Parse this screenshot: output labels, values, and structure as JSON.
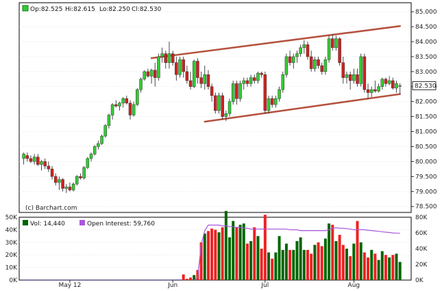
{
  "chart_data": [
    {
      "type": "candlestick",
      "title": "",
      "legend": {
        "open": "Op:82.525",
        "high": "Hi:82.615",
        "low": "Lo:82.250",
        "close": "Cl:82.530"
      },
      "credit": "(c) Barchart.com",
      "last_price_label": "82.530",
      "ylim": [
        78.3,
        85.3
      ],
      "yticks": [
        "85.000",
        "84.500",
        "84.000",
        "83.500",
        "83.000",
        "82.500",
        "82.000",
        "81.500",
        "81.000",
        "80.500",
        "80.000",
        "79.500",
        "79.000",
        "78.500"
      ],
      "ytick_values": [
        85.0,
        84.5,
        84.0,
        83.5,
        83.0,
        82.5,
        82.0,
        81.5,
        81.0,
        80.5,
        80.0,
        79.5,
        79.0,
        78.5
      ],
      "xticks": [
        "May 12",
        "Jun",
        "Jul",
        "Aug"
      ],
      "xtick_bar_index": [
        13,
        42,
        68,
        93
      ],
      "bar_count": 107,
      "trendlines": [
        {
          "from": [
            36,
            83.45
          ],
          "to": [
            106,
            84.52
          ]
        },
        {
          "from": [
            51,
            81.33
          ],
          "to": [
            106,
            82.25
          ]
        }
      ],
      "colors": {
        "up": "#33cc33",
        "down": "#cc2222",
        "trendline": "#b5523f"
      },
      "candles": [
        {
          "o": 80.1,
          "h": 80.3,
          "l": 79.9,
          "c": 80.25
        },
        {
          "o": 80.2,
          "h": 80.3,
          "l": 80.0,
          "c": 80.1
        },
        {
          "o": 80.1,
          "h": 80.2,
          "l": 79.95,
          "c": 80.0
        },
        {
          "o": 80.0,
          "h": 80.25,
          "l": 79.9,
          "c": 80.15
        },
        {
          "o": 80.15,
          "h": 80.25,
          "l": 79.85,
          "c": 79.9
        },
        {
          "o": 79.9,
          "h": 80.05,
          "l": 79.7,
          "c": 80.0
        },
        {
          "o": 80.0,
          "h": 80.1,
          "l": 79.75,
          "c": 79.85
        },
        {
          "o": 79.85,
          "h": 80.0,
          "l": 79.65,
          "c": 79.75
        },
        {
          "o": 79.75,
          "h": 79.85,
          "l": 79.4,
          "c": 79.5
        },
        {
          "o": 79.5,
          "h": 79.6,
          "l": 79.2,
          "c": 79.3
        },
        {
          "o": 79.3,
          "h": 79.5,
          "l": 79.05,
          "c": 79.4
        },
        {
          "o": 79.4,
          "h": 79.45,
          "l": 79.0,
          "c": 79.1
        },
        {
          "o": 79.1,
          "h": 79.25,
          "l": 78.95,
          "c": 79.15
        },
        {
          "o": 79.15,
          "h": 79.3,
          "l": 79.0,
          "c": 79.05
        },
        {
          "o": 79.05,
          "h": 79.3,
          "l": 79.0,
          "c": 79.25
        },
        {
          "o": 79.25,
          "h": 79.55,
          "l": 79.2,
          "c": 79.5
        },
        {
          "o": 79.5,
          "h": 79.6,
          "l": 79.4,
          "c": 79.45
        },
        {
          "o": 79.45,
          "h": 79.85,
          "l": 79.4,
          "c": 79.8
        },
        {
          "o": 79.8,
          "h": 80.15,
          "l": 79.75,
          "c": 80.1
        },
        {
          "o": 80.1,
          "h": 80.3,
          "l": 80.0,
          "c": 80.25
        },
        {
          "o": 80.25,
          "h": 80.55,
          "l": 80.2,
          "c": 80.5
        },
        {
          "o": 80.5,
          "h": 80.7,
          "l": 80.4,
          "c": 80.6
        },
        {
          "o": 80.6,
          "h": 80.9,
          "l": 80.55,
          "c": 80.85
        },
        {
          "o": 80.85,
          "h": 81.25,
          "l": 80.8,
          "c": 81.2
        },
        {
          "o": 81.2,
          "h": 81.6,
          "l": 81.1,
          "c": 81.55
        },
        {
          "o": 81.55,
          "h": 81.95,
          "l": 81.4,
          "c": 81.9
        },
        {
          "o": 81.9,
          "h": 82.05,
          "l": 81.8,
          "c": 81.85
        },
        {
          "o": 81.85,
          "h": 82.0,
          "l": 81.7,
          "c": 81.95
        },
        {
          "o": 81.95,
          "h": 82.15,
          "l": 81.8,
          "c": 82.1
        },
        {
          "o": 82.1,
          "h": 82.2,
          "l": 81.9,
          "c": 81.95
        },
        {
          "o": 81.95,
          "h": 82.05,
          "l": 81.4,
          "c": 81.55
        },
        {
          "o": 81.55,
          "h": 82.0,
          "l": 81.5,
          "c": 81.9
        },
        {
          "o": 81.9,
          "h": 82.45,
          "l": 81.85,
          "c": 82.4
        },
        {
          "o": 82.4,
          "h": 82.8,
          "l": 82.3,
          "c": 82.75
        },
        {
          "o": 82.75,
          "h": 83.05,
          "l": 82.7,
          "c": 83.0
        },
        {
          "o": 83.0,
          "h": 83.1,
          "l": 82.8,
          "c": 82.85
        },
        {
          "o": 82.85,
          "h": 83.1,
          "l": 82.6,
          "c": 83.05
        },
        {
          "o": 83.05,
          "h": 83.3,
          "l": 82.5,
          "c": 82.8
        },
        {
          "o": 82.8,
          "h": 83.6,
          "l": 82.7,
          "c": 83.5
        },
        {
          "o": 83.5,
          "h": 83.8,
          "l": 83.3,
          "c": 83.6
        },
        {
          "o": 83.6,
          "h": 83.7,
          "l": 83.1,
          "c": 83.3
        },
        {
          "o": 83.3,
          "h": 84.0,
          "l": 83.1,
          "c": 83.6
        },
        {
          "o": 83.6,
          "h": 83.7,
          "l": 83.2,
          "c": 83.3
        },
        {
          "o": 83.3,
          "h": 83.5,
          "l": 82.7,
          "c": 82.9
        },
        {
          "o": 82.9,
          "h": 83.5,
          "l": 82.8,
          "c": 83.4
        },
        {
          "o": 83.4,
          "h": 83.5,
          "l": 82.8,
          "c": 83.0
        },
        {
          "o": 83.0,
          "h": 83.2,
          "l": 82.6,
          "c": 82.7
        },
        {
          "o": 82.7,
          "h": 83.0,
          "l": 82.4,
          "c": 82.5
        },
        {
          "o": 82.5,
          "h": 83.4,
          "l": 82.45,
          "c": 83.35
        },
        {
          "o": 83.35,
          "h": 83.45,
          "l": 82.6,
          "c": 82.8
        },
        {
          "o": 82.8,
          "h": 83.0,
          "l": 82.45,
          "c": 82.6
        },
        {
          "o": 82.6,
          "h": 83.2,
          "l": 82.4,
          "c": 82.9
        },
        {
          "o": 82.9,
          "h": 83.05,
          "l": 82.4,
          "c": 82.5
        },
        {
          "o": 82.5,
          "h": 82.6,
          "l": 82.0,
          "c": 82.2
        },
        {
          "o": 82.2,
          "h": 82.3,
          "l": 81.6,
          "c": 81.7
        },
        {
          "o": 81.7,
          "h": 82.3,
          "l": 81.6,
          "c": 82.2
        },
        {
          "o": 82.2,
          "h": 82.3,
          "l": 81.4,
          "c": 81.5
        },
        {
          "o": 81.5,
          "h": 81.7,
          "l": 81.35,
          "c": 81.6
        },
        {
          "o": 81.6,
          "h": 82.1,
          "l": 81.5,
          "c": 82.0
        },
        {
          "o": 82.0,
          "h": 82.7,
          "l": 81.9,
          "c": 82.6
        },
        {
          "o": 82.6,
          "h": 82.7,
          "l": 81.9,
          "c": 82.1
        },
        {
          "o": 82.1,
          "h": 82.7,
          "l": 82.0,
          "c": 82.6
        },
        {
          "o": 82.6,
          "h": 82.8,
          "l": 82.4,
          "c": 82.7
        },
        {
          "o": 82.7,
          "h": 82.8,
          "l": 82.5,
          "c": 82.6
        },
        {
          "o": 82.6,
          "h": 82.9,
          "l": 82.5,
          "c": 82.8
        },
        {
          "o": 82.8,
          "h": 82.9,
          "l": 82.6,
          "c": 82.7
        },
        {
          "o": 82.7,
          "h": 83.0,
          "l": 82.6,
          "c": 82.95
        },
        {
          "o": 82.95,
          "h": 83.0,
          "l": 82.8,
          "c": 82.9
        },
        {
          "o": 82.9,
          "h": 83.0,
          "l": 81.6,
          "c": 81.7
        },
        {
          "o": 81.7,
          "h": 82.2,
          "l": 81.6,
          "c": 82.1
        },
        {
          "o": 82.1,
          "h": 82.2,
          "l": 81.8,
          "c": 81.9
        },
        {
          "o": 81.9,
          "h": 82.2,
          "l": 81.8,
          "c": 82.1
        },
        {
          "o": 82.1,
          "h": 82.5,
          "l": 82.0,
          "c": 82.4
        },
        {
          "o": 82.4,
          "h": 83.0,
          "l": 82.3,
          "c": 82.9
        },
        {
          "o": 82.9,
          "h": 83.6,
          "l": 82.8,
          "c": 83.5
        },
        {
          "o": 83.5,
          "h": 83.7,
          "l": 83.2,
          "c": 83.3
        },
        {
          "o": 83.3,
          "h": 83.6,
          "l": 83.1,
          "c": 83.5
        },
        {
          "o": 83.5,
          "h": 83.7,
          "l": 83.3,
          "c": 83.6
        },
        {
          "o": 83.6,
          "h": 83.9,
          "l": 83.5,
          "c": 83.8
        },
        {
          "o": 83.8,
          "h": 84.05,
          "l": 83.6,
          "c": 83.9
        },
        {
          "o": 83.9,
          "h": 84.0,
          "l": 83.4,
          "c": 83.5
        },
        {
          "o": 83.5,
          "h": 83.7,
          "l": 83.0,
          "c": 83.1
        },
        {
          "o": 83.1,
          "h": 83.5,
          "l": 83.0,
          "c": 83.4
        },
        {
          "o": 83.4,
          "h": 83.5,
          "l": 83.1,
          "c": 83.2
        },
        {
          "o": 83.2,
          "h": 83.3,
          "l": 82.9,
          "c": 83.0
        },
        {
          "o": 83.0,
          "h": 83.5,
          "l": 82.9,
          "c": 83.4
        },
        {
          "o": 83.4,
          "h": 84.2,
          "l": 83.3,
          "c": 84.1
        },
        {
          "o": 84.1,
          "h": 84.25,
          "l": 83.7,
          "c": 83.8
        },
        {
          "o": 83.8,
          "h": 84.2,
          "l": 83.7,
          "c": 84.1
        },
        {
          "o": 84.1,
          "h": 84.15,
          "l": 83.2,
          "c": 83.3
        },
        {
          "o": 83.3,
          "h": 83.5,
          "l": 82.6,
          "c": 82.8
        },
        {
          "o": 82.8,
          "h": 83.0,
          "l": 82.6,
          "c": 82.9
        },
        {
          "o": 82.9,
          "h": 83.0,
          "l": 82.4,
          "c": 82.7
        },
        {
          "o": 82.7,
          "h": 83.1,
          "l": 82.6,
          "c": 82.9
        },
        {
          "o": 82.9,
          "h": 83.1,
          "l": 82.5,
          "c": 82.6
        },
        {
          "o": 82.6,
          "h": 83.6,
          "l": 82.5,
          "c": 83.5
        },
        {
          "o": 83.5,
          "h": 83.6,
          "l": 82.3,
          "c": 82.4
        },
        {
          "o": 82.4,
          "h": 82.6,
          "l": 82.1,
          "c": 82.3
        },
        {
          "o": 82.3,
          "h": 82.5,
          "l": 82.15,
          "c": 82.4
        },
        {
          "o": 82.4,
          "h": 82.7,
          "l": 82.3,
          "c": 82.35
        },
        {
          "o": 82.35,
          "h": 82.6,
          "l": 82.3,
          "c": 82.5
        },
        {
          "o": 82.5,
          "h": 82.8,
          "l": 82.4,
          "c": 82.75
        },
        {
          "o": 82.75,
          "h": 82.8,
          "l": 82.5,
          "c": 82.6
        },
        {
          "o": 82.6,
          "h": 82.85,
          "l": 82.55,
          "c": 82.7
        },
        {
          "o": 82.7,
          "h": 82.8,
          "l": 82.4,
          "c": 82.45
        },
        {
          "o": 82.45,
          "h": 82.7,
          "l": 82.3,
          "c": 82.6
        },
        {
          "o": 82.525,
          "h": 82.615,
          "l": 82.25,
          "c": 82.53
        }
      ]
    },
    {
      "type": "bar+line",
      "title": "",
      "legend": {
        "volume": "Vol: 14,440",
        "open_interest": "Open Interest: 59,760"
      },
      "left_yticks": [
        "50K",
        "40K",
        "30K",
        "20K",
        "10K",
        "0K"
      ],
      "left_ytick_values": [
        50000,
        40000,
        30000,
        20000,
        10000,
        0
      ],
      "right_yticks": [
        "80K",
        "60K",
        "40K",
        "20K",
        "0K"
      ],
      "right_ytick_values": [
        80000,
        60000,
        40000,
        20000,
        0
      ],
      "ylim_left": [
        0,
        50000
      ],
      "ylim_right": [
        0,
        80000
      ],
      "colors": {
        "up": "#006600",
        "down": "#ee2222",
        "flat": "#000099",
        "open_interest": "#aa55dd"
      },
      "volume": [
        150,
        150,
        150,
        150,
        150,
        150,
        150,
        150,
        150,
        150,
        150,
        150,
        150,
        150,
        150,
        150,
        150,
        150,
        150,
        150,
        150,
        150,
        150,
        150,
        150,
        150,
        150,
        150,
        150,
        150,
        150,
        150,
        150,
        150,
        150,
        150,
        150,
        150,
        150,
        150,
        150,
        150,
        200,
        300,
        300,
        4500,
        1000,
        2000,
        4000,
        8000,
        30000,
        37000,
        39000,
        41000,
        40000,
        38000,
        42000,
        55000,
        34000,
        47000,
        42000,
        44000,
        45000,
        29000,
        31000,
        42000,
        35000,
        25000,
        52000,
        22000,
        17000,
        22000,
        35000,
        24000,
        29000,
        24000,
        24000,
        31000,
        34000,
        24000,
        24000,
        21000,
        28000,
        30000,
        27000,
        33000,
        45000,
        44000,
        31000,
        36000,
        28000,
        25000,
        19000,
        29000,
        47000,
        30000,
        22000,
        18000,
        24000,
        21000,
        16000,
        23000,
        20000,
        18000,
        20000,
        21000,
        14440
      ],
      "open_interest": [
        null,
        null,
        null,
        null,
        null,
        null,
        null,
        null,
        null,
        null,
        null,
        null,
        null,
        null,
        null,
        null,
        null,
        null,
        null,
        null,
        null,
        null,
        null,
        null,
        null,
        null,
        null,
        null,
        null,
        null,
        null,
        null,
        null,
        null,
        null,
        null,
        null,
        null,
        null,
        null,
        null,
        null,
        null,
        null,
        null,
        null,
        null,
        null,
        400,
        3000,
        45000,
        63000,
        70000,
        70000,
        70000,
        70000,
        69000,
        69000,
        68000,
        68000,
        67000,
        67000,
        66000,
        66000,
        65000,
        65000,
        65000,
        65000,
        65000,
        65000,
        65000,
        65000,
        65000,
        65000,
        65000,
        64000,
        64000,
        64000,
        63000,
        63000,
        63000,
        63000,
        63000,
        63000,
        63000,
        63000,
        64000,
        66000,
        66500,
        66000,
        66000,
        65500,
        65000,
        64000,
        64000,
        64000,
        64000,
        63500,
        63000,
        62500,
        62000,
        61500,
        61000,
        60500,
        60000,
        59760,
        59760
      ]
    }
  ]
}
